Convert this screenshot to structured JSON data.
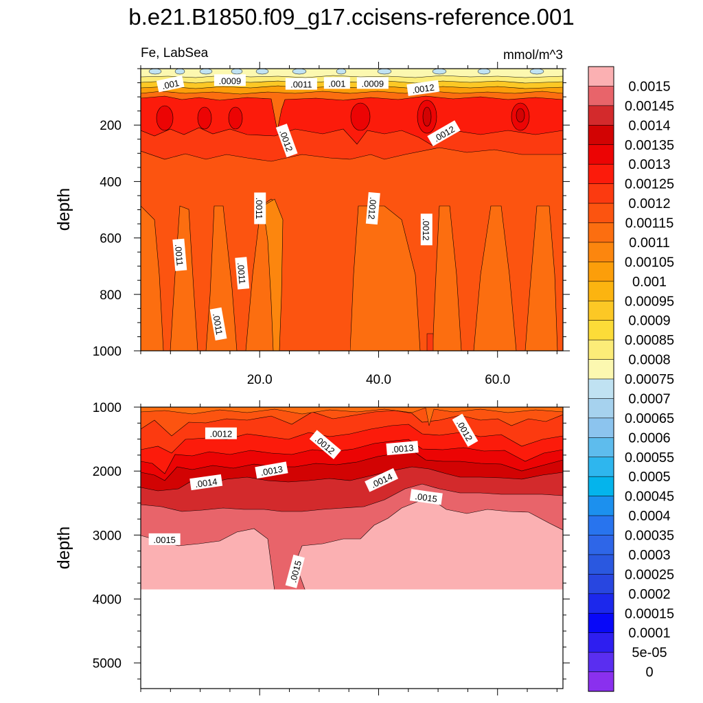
{
  "title": "b.e21.B1850.f09_g17.ccisens-reference.001",
  "chart_data": [
    {
      "type": "heatmap",
      "panel": "upper",
      "left_label": "Fe, LabSea",
      "right_label": "mmol/m^3",
      "ylabel": "depth",
      "ylim": [
        1000,
        0
      ],
      "yticks": [
        200,
        400,
        600,
        800,
        1000
      ],
      "xlim": [
        0,
        71
      ],
      "xticks": [
        20,
        40,
        60
      ],
      "xtick_labels": [
        "20.0",
        "40.0",
        "60.0"
      ],
      "contour_labels": [
        {
          "text": ".001",
          "x": 5,
          "y": 55
        },
        {
          "text": ".0009",
          "x": 15,
          "y": 42
        },
        {
          "text": ".0011",
          "x": 27,
          "y": 55
        },
        {
          "text": ".001",
          "x": 33,
          "y": 52
        },
        {
          "text": ".0009",
          "x": 39,
          "y": 52
        },
        {
          "text": ".0012",
          "x": 47.5,
          "y": 70
        },
        {
          "text": ".0012",
          "x": 24.5,
          "y": 255
        },
        {
          "text": ".0012",
          "x": 51,
          "y": 230
        },
        {
          "text": ".0011",
          "x": 20,
          "y": 495
        },
        {
          "text": ".0012",
          "x": 39,
          "y": 495
        },
        {
          "text": ".0012",
          "x": 48,
          "y": 570
        },
        {
          "text": ".0011",
          "x": 6.5,
          "y": 660
        },
        {
          "text": ".0011",
          "x": 17,
          "y": 725
        },
        {
          "text": ".0011",
          "x": 13,
          "y": 905
        }
      ]
    },
    {
      "type": "heatmap",
      "panel": "lower",
      "ylabel": "depth",
      "ylim": [
        5400,
        1000
      ],
      "yticks": [
        1000,
        2000,
        3000,
        4000,
        5000
      ],
      "xlim": [
        0,
        71
      ],
      "bottom_of_data_depth": 3850,
      "contour_labels": [
        {
          "text": ".0012",
          "x": 13.5,
          "y": 1415
        },
        {
          "text": ".0012",
          "x": 31,
          "y": 1590
        },
        {
          "text": ".0012",
          "x": 54.5,
          "y": 1365
        },
        {
          "text": ".0013",
          "x": 22,
          "y": 1990
        },
        {
          "text": ".0013",
          "x": 44,
          "y": 1645
        },
        {
          "text": ".0014",
          "x": 11,
          "y": 2180
        },
        {
          "text": ".0014",
          "x": 40.5,
          "y": 2145
        },
        {
          "text": ".0015",
          "x": 48,
          "y": 2410
        },
        {
          "text": ".0015",
          "x": 4,
          "y": 3070
        },
        {
          "text": ".0015",
          "x": 26,
          "y": 3570
        }
      ]
    }
  ],
  "colorbar": {
    "labels": [
      "0.0015",
      "0.00145",
      "0.0014",
      "0.00135",
      "0.0013",
      "0.00125",
      "0.0012",
      "0.00115",
      "0.0011",
      "0.00105",
      "0.001",
      "0.00095",
      "0.0009",
      "0.00085",
      "0.0008",
      "0.00075",
      "0.0007",
      "0.00065",
      "0.0006",
      "0.00055",
      "0.0005",
      "0.00045",
      "0.0004",
      "0.00035",
      "0.0003",
      "0.00025",
      "0.0002",
      "0.00015",
      "0.0001",
      "5e-05",
      "0"
    ],
    "colors": [
      "#fbb0b2",
      "#e8646a",
      "#d32a2c",
      "#d20303",
      "#ec0404",
      "#fc1b0b",
      "#fc3a10",
      "#fc5410",
      "#fc6e10",
      "#fc860e",
      "#fc9e0a",
      "#fcb410",
      "#fcc825",
      "#fcdc38",
      "#fcec78",
      "#fcf8b0",
      "#c0e2f2",
      "#a6d2ee",
      "#8cc4ee",
      "#5ebced",
      "#2eb6ee",
      "#04b4ec",
      "#1c90ee",
      "#2874ee",
      "#2e66e8",
      "#2a58e0",
      "#2846e0",
      "#1c28ec",
      "#0808f8",
      "#2e1ef0",
      "#5a2ef0",
      "#8a30ee"
    ]
  }
}
